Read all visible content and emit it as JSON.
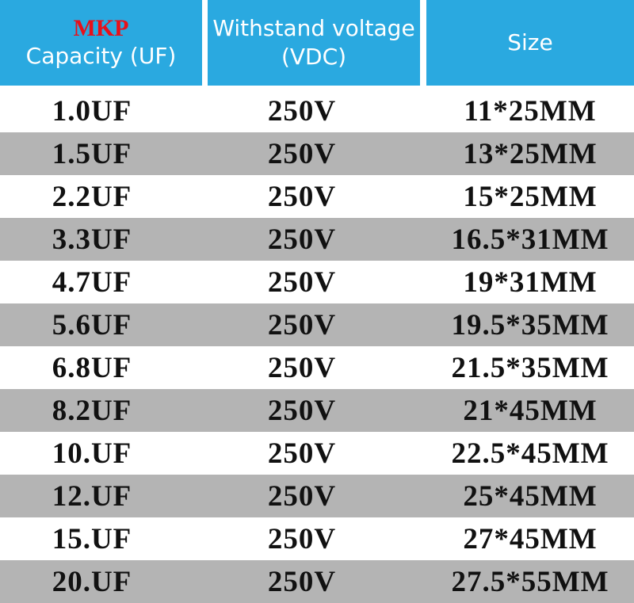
{
  "header": [
    {
      "lines": [
        "MKP",
        "Capacity (UF)"
      ]
    },
    {
      "lines": [
        "Withstand voltage",
        "(VDC)"
      ]
    },
    {
      "lines": [
        "Size"
      ]
    }
  ],
  "table": {
    "rows": [
      [
        "1.0UF",
        "250V",
        "11*25MM"
      ],
      [
        "1.5UF",
        "250V",
        "13*25MM"
      ],
      [
        "2.2UF",
        "250V",
        "15*25MM"
      ],
      [
        "3.3UF",
        "250V",
        "16.5*31MM"
      ],
      [
        "4.7UF",
        "250V",
        "19*31MM"
      ],
      [
        "5.6UF",
        "250V",
        "19.5*35MM"
      ],
      [
        "6.8UF",
        "250V",
        "21.5*35MM"
      ],
      [
        "8.2UF",
        "250V",
        "21*45MM"
      ],
      [
        "10.UF",
        "250V",
        "22.5*45MM"
      ],
      [
        "12.UF",
        "250V",
        "25*45MM"
      ],
      [
        "15.UF",
        "250V",
        "27*45MM"
      ],
      [
        "20.UF",
        "250V",
        "27.5*55MM"
      ]
    ]
  }
}
